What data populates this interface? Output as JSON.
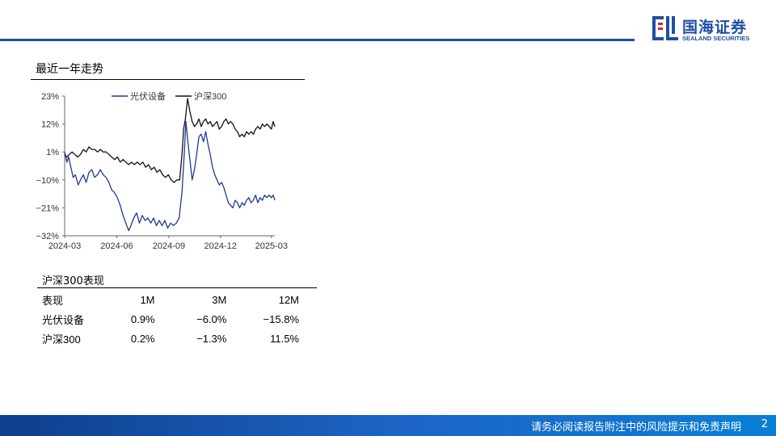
{
  "header": {
    "logo_cn": "国海证券",
    "logo_en": "SEALAND SECURITIES",
    "accent_color": "#1f4fa3"
  },
  "chart_section": {
    "title": "最近一年走势"
  },
  "chart_data": {
    "type": "line",
    "title": "",
    "xlabel": "",
    "ylabel": "",
    "x_ticks": [
      "2024-03",
      "2024-06",
      "2024-09",
      "2024-12",
      "2025-03"
    ],
    "y_ticks": [
      "23%",
      "12%",
      "1%",
      "−10%",
      "−21%",
      "−32%"
    ],
    "y_tick_values": [
      23,
      12,
      1,
      -10,
      -21,
      -32
    ],
    "ylim": [
      -32,
      23
    ],
    "x_range": [
      "2024-03-01",
      "2025-03-07"
    ],
    "grid": false,
    "legend_position": "top",
    "series": [
      {
        "name": "光伏设备",
        "color": "#1f3a93",
        "points": [
          [
            "2024-03-01",
            1
          ],
          [
            "2024-03-05",
            -3
          ],
          [
            "2024-03-08",
            -1
          ],
          [
            "2024-03-12",
            -5
          ],
          [
            "2024-03-16",
            -9
          ],
          [
            "2024-03-20",
            -8
          ],
          [
            "2024-03-25",
            -12
          ],
          [
            "2024-03-29",
            -10
          ],
          [
            "2024-04-03",
            -8
          ],
          [
            "2024-04-08",
            -11
          ],
          [
            "2024-04-13",
            -7
          ],
          [
            "2024-04-18",
            -6
          ],
          [
            "2024-04-23",
            -9
          ],
          [
            "2024-04-28",
            -8
          ],
          [
            "2024-05-03",
            -6
          ],
          [
            "2024-05-08",
            -8
          ],
          [
            "2024-05-13",
            -9
          ],
          [
            "2024-05-18",
            -11
          ],
          [
            "2024-05-23",
            -14
          ],
          [
            "2024-05-28",
            -15
          ],
          [
            "2024-06-02",
            -17
          ],
          [
            "2024-06-07",
            -20
          ],
          [
            "2024-06-12",
            -24
          ],
          [
            "2024-06-17",
            -27
          ],
          [
            "2024-06-22",
            -30
          ],
          [
            "2024-06-26",
            -28
          ],
          [
            "2024-07-01",
            -25
          ],
          [
            "2024-07-06",
            -23
          ],
          [
            "2024-07-11",
            -27
          ],
          [
            "2024-07-16",
            -24
          ],
          [
            "2024-07-21",
            -26
          ],
          [
            "2024-07-26",
            -25
          ],
          [
            "2024-07-31",
            -27
          ],
          [
            "2024-08-05",
            -25
          ],
          [
            "2024-08-10",
            -28
          ],
          [
            "2024-08-15",
            -26
          ],
          [
            "2024-08-20",
            -28
          ],
          [
            "2024-08-25",
            -26
          ],
          [
            "2024-08-30",
            -29
          ],
          [
            "2024-09-04",
            -27
          ],
          [
            "2024-09-09",
            -28
          ],
          [
            "2024-09-14",
            -27
          ],
          [
            "2024-09-19",
            -25
          ],
          [
            "2024-09-24",
            -15
          ],
          [
            "2024-09-28",
            0
          ],
          [
            "2024-10-01",
            13
          ],
          [
            "2024-10-04",
            6
          ],
          [
            "2024-10-08",
            -2
          ],
          [
            "2024-10-12",
            -10
          ],
          [
            "2024-10-16",
            -6
          ],
          [
            "2024-10-20",
            0
          ],
          [
            "2024-10-24",
            7
          ],
          [
            "2024-10-28",
            8
          ],
          [
            "2024-11-01",
            5
          ],
          [
            "2024-11-05",
            9
          ],
          [
            "2024-11-09",
            4
          ],
          [
            "2024-11-13",
            0
          ],
          [
            "2024-11-17",
            -5
          ],
          [
            "2024-11-21",
            -8
          ],
          [
            "2024-11-25",
            -10
          ],
          [
            "2024-11-29",
            -12
          ],
          [
            "2024-12-03",
            -11
          ],
          [
            "2024-12-07",
            -13
          ],
          [
            "2024-12-11",
            -16
          ],
          [
            "2024-12-15",
            -19
          ],
          [
            "2024-12-19",
            -20
          ],
          [
            "2024-12-23",
            -21
          ],
          [
            "2024-12-27",
            -18
          ],
          [
            "2024-12-31",
            -19
          ],
          [
            "2025-01-04",
            -21
          ],
          [
            "2025-01-08",
            -19
          ],
          [
            "2025-01-12",
            -20
          ],
          [
            "2025-01-16",
            -18
          ],
          [
            "2025-01-20",
            -17
          ],
          [
            "2025-01-24",
            -19
          ],
          [
            "2025-01-28",
            -18
          ],
          [
            "2025-02-01",
            -16
          ],
          [
            "2025-02-05",
            -19
          ],
          [
            "2025-02-09",
            -17
          ],
          [
            "2025-02-13",
            -18
          ],
          [
            "2025-02-17",
            -16
          ],
          [
            "2025-02-21",
            -17
          ],
          [
            "2025-02-25",
            -16
          ],
          [
            "2025-03-01",
            -17
          ],
          [
            "2025-03-04",
            -16
          ],
          [
            "2025-03-07",
            -18
          ]
        ]
      },
      {
        "name": "沪深300",
        "color": "#111111",
        "points": [
          [
            "2024-03-01",
            0
          ],
          [
            "2024-03-05",
            -1
          ],
          [
            "2024-03-09",
            0
          ],
          [
            "2024-03-14",
            1
          ],
          [
            "2024-03-19",
            0
          ],
          [
            "2024-03-24",
            -1
          ],
          [
            "2024-03-29",
            0
          ],
          [
            "2024-04-03",
            2
          ],
          [
            "2024-04-08",
            1
          ],
          [
            "2024-04-13",
            3
          ],
          [
            "2024-04-18",
            2
          ],
          [
            "2024-04-23",
            2
          ],
          [
            "2024-04-28",
            1
          ],
          [
            "2024-05-03",
            2
          ],
          [
            "2024-05-08",
            1
          ],
          [
            "2024-05-13",
            1
          ],
          [
            "2024-05-18",
            0
          ],
          [
            "2024-05-23",
            -1
          ],
          [
            "2024-05-28",
            -2
          ],
          [
            "2024-06-02",
            -1
          ],
          [
            "2024-06-07",
            -3
          ],
          [
            "2024-06-12",
            -2
          ],
          [
            "2024-06-17",
            -3
          ],
          [
            "2024-06-22",
            -4
          ],
          [
            "2024-06-27",
            -3
          ],
          [
            "2024-07-02",
            -4
          ],
          [
            "2024-07-07",
            -3
          ],
          [
            "2024-07-12",
            -4
          ],
          [
            "2024-07-17",
            -3
          ],
          [
            "2024-07-22",
            -5
          ],
          [
            "2024-07-27",
            -4
          ],
          [
            "2024-08-01",
            -6
          ],
          [
            "2024-08-06",
            -5
          ],
          [
            "2024-08-11",
            -7
          ],
          [
            "2024-08-16",
            -6
          ],
          [
            "2024-08-21",
            -8
          ],
          [
            "2024-08-26",
            -9
          ],
          [
            "2024-08-31",
            -8
          ],
          [
            "2024-09-05",
            -10
          ],
          [
            "2024-09-10",
            -11
          ],
          [
            "2024-09-15",
            -10
          ],
          [
            "2024-09-20",
            -10
          ],
          [
            "2024-09-24",
            0
          ],
          [
            "2024-09-27",
            10
          ],
          [
            "2024-09-30",
            14
          ],
          [
            "2024-10-04",
            22
          ],
          [
            "2024-10-08",
            17
          ],
          [
            "2024-10-12",
            13
          ],
          [
            "2024-10-16",
            11
          ],
          [
            "2024-10-20",
            12
          ],
          [
            "2024-10-24",
            14
          ],
          [
            "2024-10-28",
            11
          ],
          [
            "2024-11-01",
            13
          ],
          [
            "2024-11-05",
            14
          ],
          [
            "2024-11-09",
            12
          ],
          [
            "2024-11-13",
            13
          ],
          [
            "2024-11-17",
            11
          ],
          [
            "2024-11-21",
            12
          ],
          [
            "2024-11-25",
            13
          ],
          [
            "2024-11-29",
            10
          ],
          [
            "2024-12-03",
            11
          ],
          [
            "2024-12-07",
            13
          ],
          [
            "2024-12-11",
            14
          ],
          [
            "2024-12-15",
            12
          ],
          [
            "2024-12-19",
            13
          ],
          [
            "2024-12-23",
            12
          ],
          [
            "2024-12-27",
            10
          ],
          [
            "2024-12-31",
            9
          ],
          [
            "2025-01-04",
            7
          ],
          [
            "2025-01-08",
            8
          ],
          [
            "2025-01-12",
            7
          ],
          [
            "2025-01-16",
            9
          ],
          [
            "2025-01-20",
            8
          ],
          [
            "2025-01-24",
            9
          ],
          [
            "2025-01-28",
            8
          ],
          [
            "2025-02-01",
            10
          ],
          [
            "2025-02-05",
            11
          ],
          [
            "2025-02-09",
            10
          ],
          [
            "2025-02-13",
            12
          ],
          [
            "2025-02-17",
            11
          ],
          [
            "2025-02-21",
            12
          ],
          [
            "2025-02-25",
            11
          ],
          [
            "2025-03-01",
            10
          ],
          [
            "2025-03-04",
            13
          ],
          [
            "2025-03-07",
            11
          ]
        ]
      }
    ]
  },
  "perf_table": {
    "title": "沪深300表现",
    "headers": [
      "表现",
      "1M",
      "3M",
      "12M"
    ],
    "rows": [
      [
        "光伏设备",
        "0.9%",
        "−6.0%",
        "−15.8%"
      ],
      [
        "沪深300",
        "0.2%",
        "−1.3%",
        "11.5%"
      ]
    ]
  },
  "footer": {
    "disclaimer": "请务必阅读报告附注中的风险提示和免责声明",
    "page_number": "2"
  }
}
